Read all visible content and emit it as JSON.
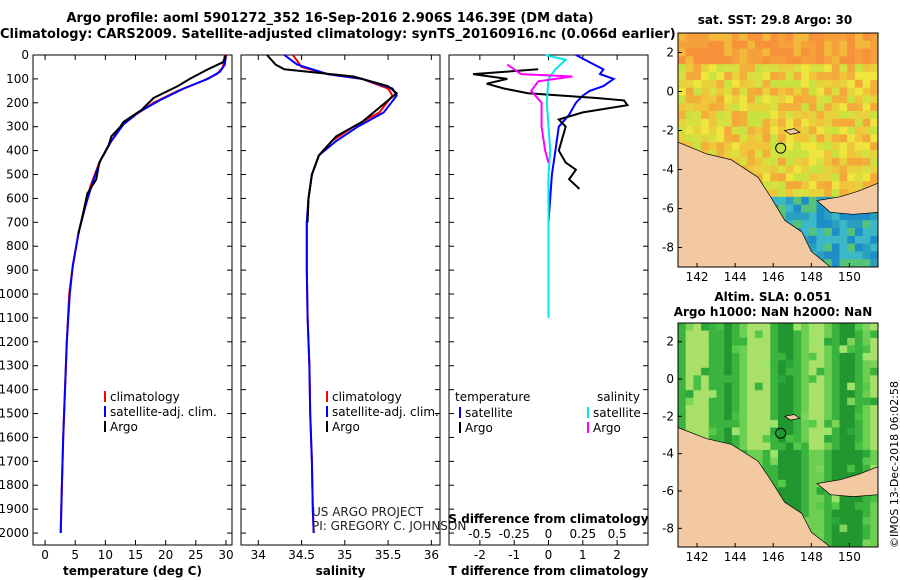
{
  "title_line1": "Argo profile: aoml 5901272_352 16-Sep-2016 2.906S 146.39E (DM data)",
  "title_line2": "Climatology: CARS2009. Satellite-adjusted climatology: synTS_20160916.nc (0.066d earlier)",
  "credit_line1": "US ARGO PROJECT",
  "credit_line2": "PI: GREGORY C. JOHNSON",
  "imos_stamp": "©IMOS 13-Dec-2018 06:02:58",
  "colors": {
    "climatology": "#ff0000",
    "satellite": "#0000ff",
    "argo": "#000000",
    "sat_salinity": "#00e5ee",
    "argo_salinity": "#ff00ff",
    "land": "#f3c9a2"
  },
  "chart_data": [
    {
      "type": "line",
      "name": "temperature",
      "xlabel": "temperature (deg C)",
      "ylabel": "",
      "xlim": [
        -2,
        31
      ],
      "ylim": [
        2050,
        0
      ],
      "x_ticks": [
        "0",
        "5",
        "10",
        "15",
        "20",
        "25",
        "30"
      ],
      "y_ticks": [
        "0",
        "100",
        "200",
        "300",
        "400",
        "500",
        "600",
        "700",
        "800",
        "900",
        "1000",
        "1100",
        "1200",
        "1300",
        "1400",
        "1500",
        "1600",
        "1700",
        "1800",
        "1900",
        "2000"
      ],
      "legend": [
        "climatology",
        "satellite-adj. clim.",
        "Argo"
      ],
      "series": [
        {
          "name": "climatology",
          "color_key": "climatology",
          "points": [
            [
              29.8,
              0
            ],
            [
              29.5,
              50
            ],
            [
              28.5,
              80
            ],
            [
              26,
              110
            ],
            [
              22,
              150
            ],
            [
              18,
              200
            ],
            [
              15,
              250
            ],
            [
              12.5,
              300
            ],
            [
              10.5,
              380
            ],
            [
              9,
              450
            ],
            [
              7.5,
              550
            ],
            [
              6.5,
              650
            ],
            [
              5.5,
              750
            ],
            [
              4.5,
              900
            ],
            [
              4,
              1000
            ],
            [
              3.6,
              1200
            ],
            [
              3.3,
              1400
            ],
            [
              3,
              1600
            ],
            [
              2.8,
              1800
            ],
            [
              2.6,
              2000
            ]
          ]
        },
        {
          "name": "satellite-adj. clim.",
          "color_key": "satellite",
          "points": [
            [
              30,
              0
            ],
            [
              29.8,
              40
            ],
            [
              29,
              70
            ],
            [
              27,
              100
            ],
            [
              23,
              140
            ],
            [
              19,
              190
            ],
            [
              15.5,
              240
            ],
            [
              13,
              290
            ],
            [
              11,
              360
            ],
            [
              9.2,
              440
            ],
            [
              7.8,
              540
            ],
            [
              6.6,
              640
            ],
            [
              5.6,
              740
            ],
            [
              4.6,
              880
            ],
            [
              4.1,
              1000
            ],
            [
              3.6,
              1200
            ],
            [
              3.3,
              1400
            ],
            [
              3,
              1600
            ],
            [
              2.8,
              1800
            ],
            [
              2.6,
              2000
            ]
          ]
        },
        {
          "name": "Argo",
          "color_key": "argo",
          "points": [
            [
              30,
              0
            ],
            [
              29.5,
              30
            ],
            [
              27,
              60
            ],
            [
              24,
              100
            ],
            [
              22,
              130
            ],
            [
              18,
              180
            ],
            [
              16,
              230
            ],
            [
              13,
              280
            ],
            [
              12.5,
              300
            ],
            [
              11,
              340
            ],
            [
              10.5,
              380
            ],
            [
              9,
              450
            ],
            [
              8.5,
              520
            ],
            [
              7,
              580
            ],
            [
              6.5,
              640
            ],
            [
              5.5,
              750
            ]
          ]
        }
      ]
    },
    {
      "type": "line",
      "name": "salinity",
      "xlabel": "salinity",
      "ylabel": "",
      "xlim": [
        33.8,
        36.1
      ],
      "ylim": [
        2050,
        0
      ],
      "x_ticks": [
        "34",
        "34.5",
        "35",
        "35.5",
        "36"
      ],
      "legend": [
        "climatology",
        "satellite-adj. clim.",
        "Argo"
      ],
      "series": [
        {
          "name": "climatology",
          "color_key": "climatology",
          "points": [
            [
              34.4,
              0
            ],
            [
              34.5,
              50
            ],
            [
              34.8,
              80
            ],
            [
              35.2,
              100
            ],
            [
              35.5,
              140
            ],
            [
              35.55,
              170
            ],
            [
              35.4,
              240
            ],
            [
              35.1,
              300
            ],
            [
              34.85,
              360
            ],
            [
              34.7,
              420
            ],
            [
              34.62,
              500
            ],
            [
              34.58,
              600
            ],
            [
              34.56,
              700
            ],
            [
              34.56,
              900
            ],
            [
              34.57,
              1100
            ],
            [
              34.59,
              1300
            ],
            [
              34.6,
              1500
            ],
            [
              34.62,
              1700
            ],
            [
              34.63,
              1900
            ],
            [
              34.64,
              2000
            ]
          ]
        },
        {
          "name": "satellite-adj. clim.",
          "color_key": "satellite",
          "points": [
            [
              34.3,
              0
            ],
            [
              34.45,
              40
            ],
            [
              34.8,
              80
            ],
            [
              35.2,
              100
            ],
            [
              35.55,
              140
            ],
            [
              35.6,
              170
            ],
            [
              35.45,
              240
            ],
            [
              35.15,
              300
            ],
            [
              34.9,
              360
            ],
            [
              34.7,
              420
            ],
            [
              34.62,
              500
            ],
            [
              34.58,
              600
            ],
            [
              34.56,
              700
            ],
            [
              34.56,
              900
            ],
            [
              34.57,
              1100
            ],
            [
              34.59,
              1300
            ],
            [
              34.6,
              1500
            ],
            [
              34.62,
              1700
            ],
            [
              34.63,
              1900
            ],
            [
              34.64,
              2000
            ]
          ]
        },
        {
          "name": "Argo",
          "color_key": "argo",
          "points": [
            [
              34.1,
              0
            ],
            [
              34.2,
              40
            ],
            [
              34.3,
              60
            ],
            [
              34.7,
              75
            ],
            [
              35.1,
              90
            ],
            [
              35.3,
              110
            ],
            [
              35.5,
              130
            ],
            [
              35.6,
              160
            ],
            [
              35.4,
              220
            ],
            [
              35.2,
              280
            ],
            [
              34.9,
              340
            ],
            [
              34.7,
              420
            ],
            [
              34.62,
              500
            ],
            [
              34.58,
              600
            ],
            [
              34.57,
              700
            ]
          ]
        }
      ]
    },
    {
      "type": "line",
      "name": "difference",
      "xlabel": "T difference from climatology",
      "x2label": "S difference from climatology",
      "xlim": [
        -2.9,
        2.9
      ],
      "ylim": [
        2050,
        0
      ],
      "x_ticks": [
        "-2",
        "-1",
        "0",
        "1",
        "2"
      ],
      "x2_ticks": [
        "-0.5",
        "-0.25",
        "0",
        "0.25",
        "0.5"
      ],
      "legend_left_title": "temperature",
      "legend_right_title": "salinity",
      "legend_left": [
        "satellite",
        "Argo"
      ],
      "legend_right": [
        "satellite",
        "Argo"
      ],
      "series": [
        {
          "name": "T satellite",
          "color_key": "satellite",
          "points": [
            [
              0.8,
              0
            ],
            [
              1.2,
              30
            ],
            [
              1.6,
              60
            ],
            [
              1.5,
              80
            ],
            [
              1.9,
              100
            ],
            [
              1.6,
              130
            ],
            [
              1.2,
              150
            ],
            [
              1,
              170
            ],
            [
              0.8,
              200
            ],
            [
              0.6,
              250
            ],
            [
              0.3,
              300
            ],
            [
              0.2,
              400
            ],
            [
              0.1,
              500
            ],
            [
              0.05,
              600
            ],
            [
              0,
              700
            ]
          ]
        },
        {
          "name": "T Argo",
          "color_key": "argo",
          "points": [
            [
              -0.3,
              60
            ],
            [
              -2.2,
              80
            ],
            [
              -1.2,
              100
            ],
            [
              -1.8,
              120
            ],
            [
              -1.3,
              140
            ],
            [
              -0.6,
              160
            ],
            [
              1.4,
              180
            ],
            [
              2.2,
              190
            ],
            [
              2.3,
              210
            ],
            [
              1,
              240
            ],
            [
              0.3,
              270
            ],
            [
              0.5,
              300
            ],
            [
              0.4,
              350
            ],
            [
              0.3,
              400
            ],
            [
              0.5,
              450
            ],
            [
              0.8,
              480
            ],
            [
              0.6,
              520
            ],
            [
              0.9,
              560
            ]
          ]
        },
        {
          "name": "S satellite",
          "color_key": "sat_salinity",
          "points": [
            [
              -0.1,
              0
            ],
            [
              0.5,
              20
            ],
            [
              0.2,
              60
            ],
            [
              0,
              100
            ],
            [
              -0.05,
              200
            ],
            [
              0,
              300
            ],
            [
              0.05,
              400
            ],
            [
              0,
              500
            ],
            [
              0,
              700
            ],
            [
              0,
              900
            ],
            [
              0,
              1100
            ]
          ]
        },
        {
          "name": "S Argo",
          "color_key": "argo_salinity",
          "points": [
            [
              -1.2,
              40
            ],
            [
              -0.8,
              80
            ],
            [
              0.7,
              90
            ],
            [
              -0.3,
              110
            ],
            [
              -0.5,
              150
            ],
            [
              -0.2,
              200
            ],
            [
              -0.2,
              300
            ],
            [
              -0.1,
              400
            ],
            [
              0,
              450
            ]
          ]
        }
      ]
    },
    {
      "type": "heatmap",
      "name": "sst_map",
      "title": "sat. SST: 29.8 Argo: 30",
      "x_ticks": [
        "142",
        "144",
        "146",
        "148",
        "150"
      ],
      "y_ticks": [
        "2",
        "0",
        "-2",
        "-4",
        "-6",
        "-8"
      ],
      "xlim": [
        141,
        151.5
      ],
      "ylim": [
        -9,
        3
      ],
      "argo_position": [
        146.39,
        -2.906
      ]
    },
    {
      "type": "heatmap",
      "name": "sla_map",
      "title_line1": "Altim. SLA: 0.051",
      "title_line2": "Argo h1000: NaN h2000: NaN",
      "x_ticks": [
        "142",
        "144",
        "146",
        "148",
        "150"
      ],
      "y_ticks": [
        "2",
        "0",
        "-2",
        "-4",
        "-6",
        "-8"
      ],
      "xlim": [
        141,
        151.5
      ],
      "ylim": [
        -9,
        3
      ],
      "argo_position": [
        146.39,
        -2.906
      ]
    }
  ]
}
